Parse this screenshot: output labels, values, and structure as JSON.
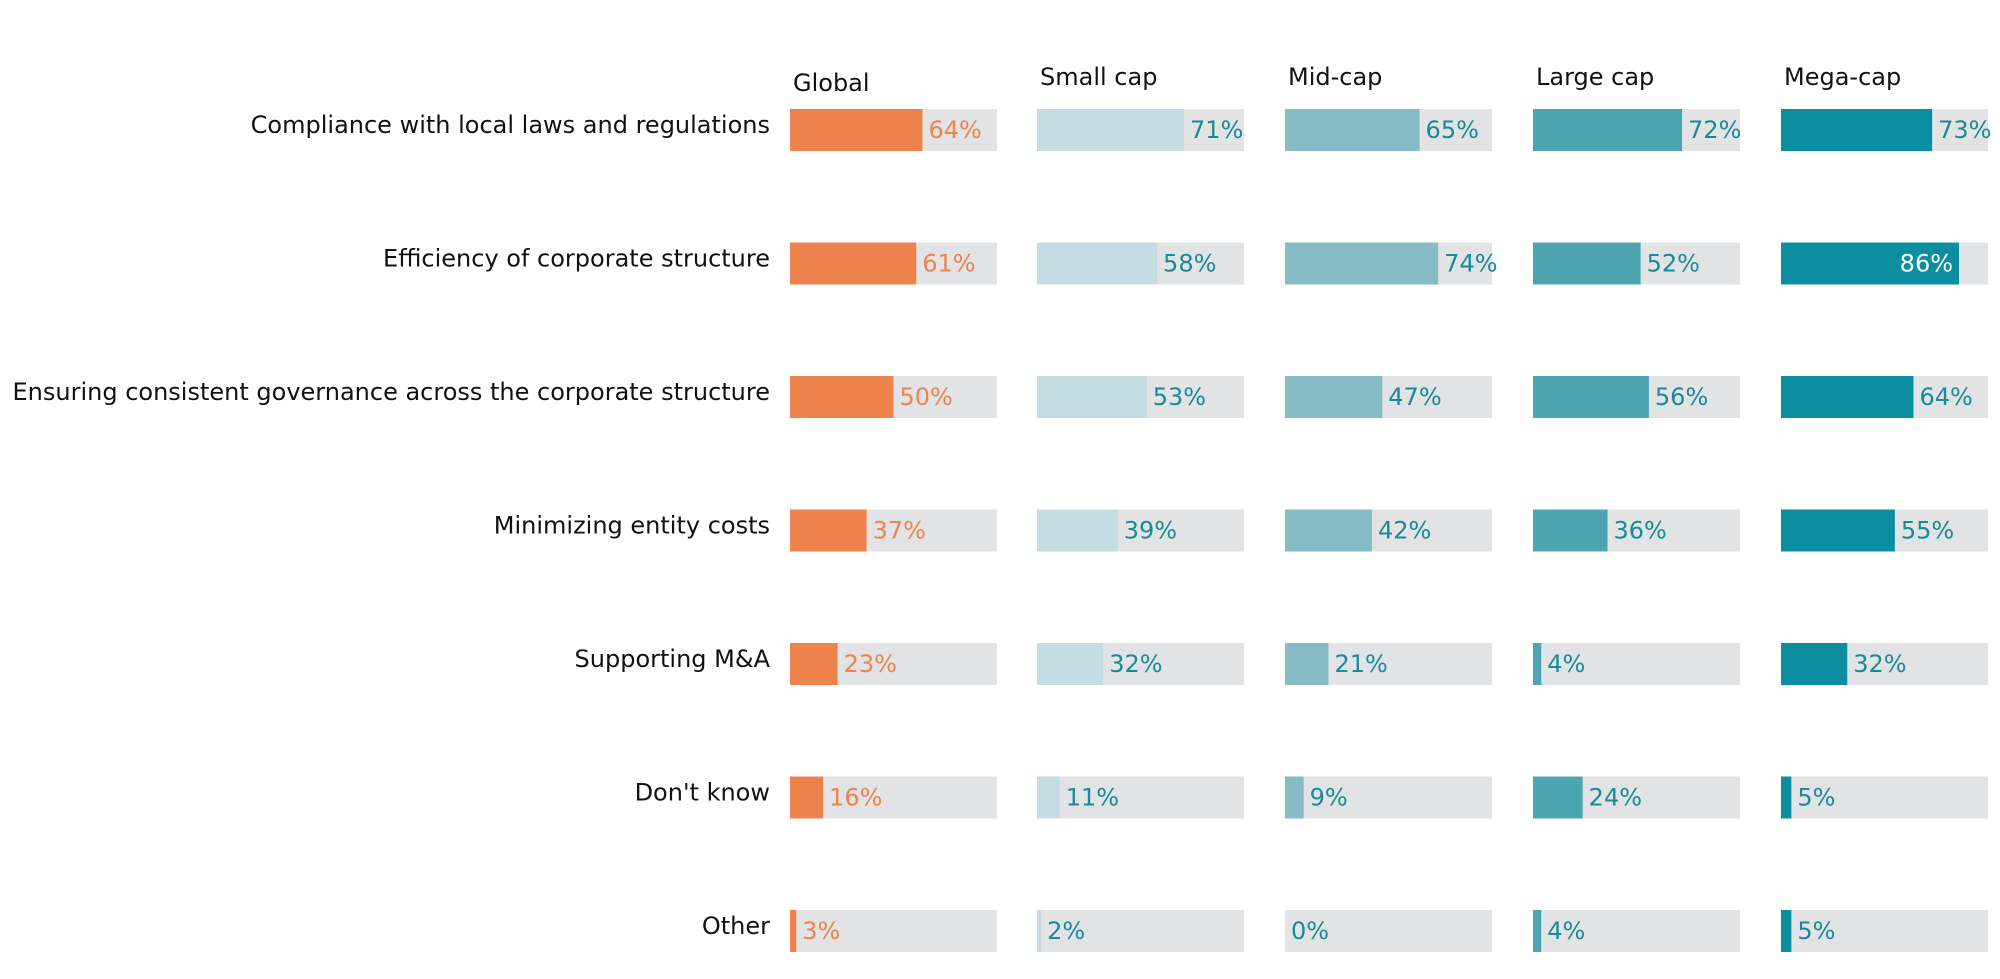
{
  "chart_data": {
    "type": "bar",
    "orientation": "horizontal",
    "layout": "small-multiples",
    "xlim": [
      0,
      100
    ],
    "value_suffix": "%",
    "track_color": "#e2e3e4",
    "categories": [
      "Compliance with local laws and regulations",
      "Efficiency of corporate structure",
      "Ensuring consistent governance across the corporate structure",
      "Minimizing entity costs",
      "Supporting M&A",
      "Don't know",
      "Other"
    ],
    "series": [
      {
        "name": "Global",
        "color": "#ee834d",
        "label_color": "#ee834d",
        "values": [
          64,
          61,
          50,
          37,
          23,
          16,
          3
        ]
      },
      {
        "name": "Small cap",
        "color": "#c4dde3",
        "label_color": "#1a8a98",
        "values": [
          71,
          58,
          53,
          39,
          32,
          11,
          2
        ]
      },
      {
        "name": "Mid-cap",
        "color": "#87bcc7",
        "label_color": "#1a8a98",
        "values": [
          65,
          74,
          47,
          42,
          21,
          9,
          0
        ]
      },
      {
        "name": "Large cap",
        "color": "#4da5b2",
        "label_color": "#1a8a98",
        "values": [
          72,
          52,
          56,
          36,
          4,
          24,
          4
        ]
      },
      {
        "name": "Mega-cap",
        "color": "#0b8e9f",
        "label_color": "#1a8a98",
        "values": [
          73,
          86,
          64,
          55,
          32,
          5,
          5
        ]
      }
    ]
  }
}
